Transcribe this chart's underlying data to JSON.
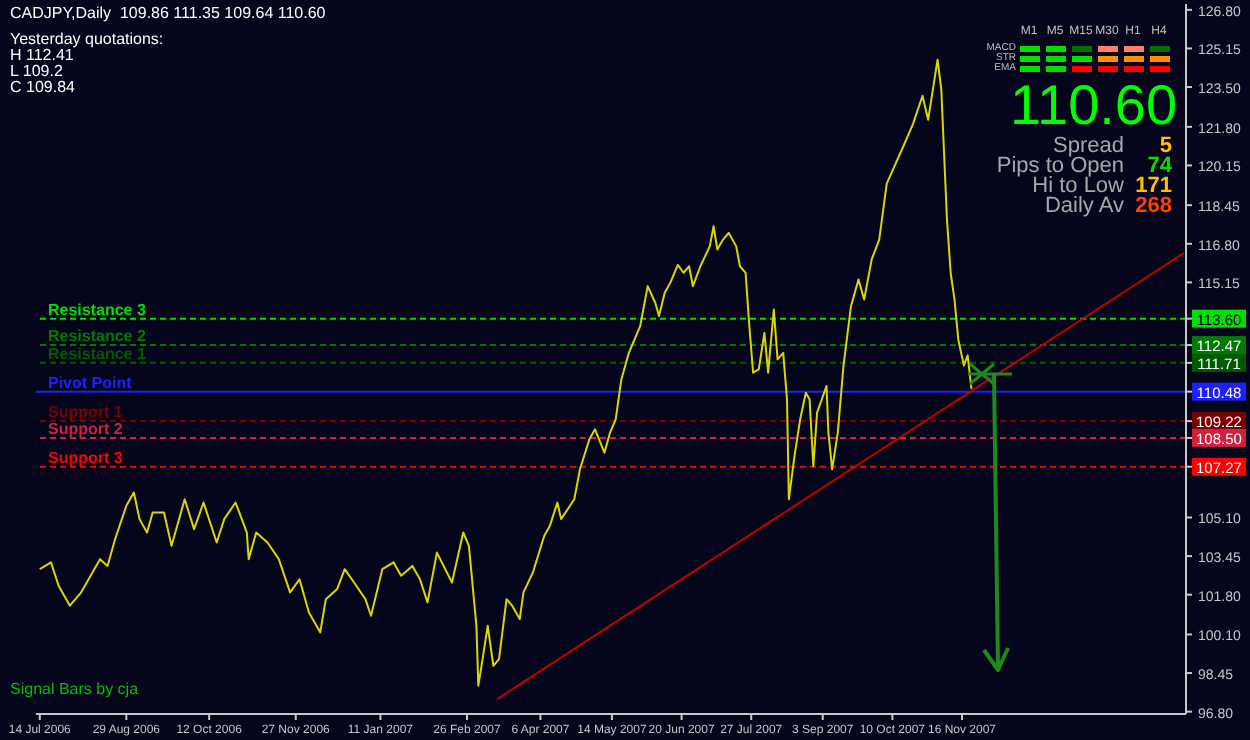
{
  "chart_data": {
    "type": "line",
    "title": "CADJPY,Daily  109.86 111.35 109.64 110.60",
    "xlim": [
      "2006-07-12",
      "2008-03-14"
    ],
    "xticks": [
      {
        "value": "2006-07-14",
        "label": "14 Jul 2006"
      },
      {
        "value": "2006-08-29",
        "label": "29 Aug 2006"
      },
      {
        "value": "2006-10-12",
        "label": "12 Oct 2006"
      },
      {
        "value": "2006-11-27",
        "label": "27 Nov 2006"
      },
      {
        "value": "2007-01-11",
        "label": "11 Jan 2007"
      },
      {
        "value": "2007-02-26",
        "label": "26 Feb 2007"
      },
      {
        "value": "2007-04-06",
        "label": "6 Apr 2007"
      },
      {
        "value": "2007-05-14",
        "label": "14 May 2007"
      },
      {
        "value": "2007-06-20",
        "label": "20 Jun 2007"
      },
      {
        "value": "2007-07-27",
        "label": "27 Jul 2007"
      },
      {
        "value": "2007-09-03",
        "label": "3 Sep 2007"
      },
      {
        "value": "2007-10-10",
        "label": "10 Oct 2007"
      },
      {
        "value": "2007-11-16",
        "label": "16 Nov 2007"
      }
    ],
    "ylim": [
      96.7,
      127.05
    ],
    "yticks": [
      {
        "value": 126.8,
        "label": "126.80"
      },
      125.15,
      {
        "value": 123.5,
        "label": "123.50"
      },
      {
        "value": 121.8,
        "label": "121.80"
      },
      120.15,
      118.45,
      {
        "value": 116.8,
        "label": "116.80"
      },
      115.15,
      {
        "value": 113.6,
        "label": "113.60"
      },
      112.47,
      111.71,
      110.48,
      109.22,
      {
        "value": 108.5,
        "label": "108.50"
      },
      107.27,
      {
        "value": 105.1,
        "label": "105.10"
      },
      103.45,
      {
        "value": 101.8,
        "label": "101.80"
      },
      {
        "value": 100.1,
        "label": "100.10"
      },
      98.45,
      {
        "value": 96.8,
        "label": "96.80"
      }
    ],
    "series": [
      {
        "color": "#d8d800",
        "x": [
          "2006-07-14",
          "2006-07-20",
          "2006-07-24",
          "2006-07-30",
          "2006-08-05",
          "2006-08-11",
          "2006-08-15",
          "2006-08-19",
          "2006-08-23",
          "2006-08-29",
          "2006-09-02",
          "2006-09-05",
          "2006-09-09",
          "2006-09-12",
          "2006-09-18",
          "2006-09-22",
          "2006-09-25",
          "2006-09-29",
          "2006-10-04",
          "2006-10-09",
          "2006-10-16",
          "2006-10-20",
          "2006-10-26",
          "2006-11-01",
          "2006-11-02",
          "2006-11-06",
          "2006-11-12",
          "2006-11-18",
          "2006-11-24",
          "2006-11-29",
          "2006-12-04",
          "2006-12-10",
          "2006-12-13",
          "2006-12-19",
          "2006-12-23",
          "2006-12-28",
          "2007-01-03",
          "2007-01-06",
          "2007-01-12",
          "2007-01-18",
          "2007-01-22",
          "2007-01-28",
          "2007-02-01",
          "2007-02-05",
          "2007-02-10",
          "2007-02-18",
          "2007-02-24",
          "2007-02-27",
          "2007-03-03",
          "2007-03-04",
          "2007-03-06",
          "2007-03-09",
          "2007-03-12",
          "2007-03-15",
          "2007-03-19",
          "2007-03-22",
          "2007-03-26",
          "2007-03-28",
          "2007-04-02",
          "2007-04-08",
          "2007-04-11",
          "2007-04-15",
          "2007-04-17",
          "2007-04-24",
          "2007-04-27",
          "2007-05-02",
          "2007-05-05",
          "2007-05-10",
          "2007-05-13",
          "2007-05-16",
          "2007-05-19",
          "2007-05-23",
          "2007-05-29",
          "2007-06-02",
          "2007-06-06",
          "2007-06-08",
          "2007-06-11",
          "2007-06-14",
          "2007-06-18",
          "2007-06-21",
          "2007-06-24",
          "2007-06-26",
          "2007-06-30",
          "2007-07-05",
          "2007-07-07",
          "2007-07-09",
          "2007-07-12",
          "2007-07-15",
          "2007-07-19",
          "2007-07-21",
          "2007-07-24",
          "2007-07-26",
          "2007-07-28",
          "2007-07-31",
          "2007-08-03",
          "2007-08-05",
          "2007-08-08",
          "2007-08-10",
          "2007-08-13",
          "2007-08-15",
          "2007-08-16",
          "2007-08-19",
          "2007-08-22",
          "2007-08-25",
          "2007-08-27",
          "2007-08-29",
          "2007-08-31",
          "2007-09-05",
          "2007-09-06",
          "2007-09-08",
          "2007-09-11",
          "2007-09-14",
          "2007-09-18",
          "2007-09-22",
          "2007-09-25",
          "2007-09-29",
          "2007-10-03",
          "2007-10-07",
          "2007-10-15",
          "2007-10-21",
          "2007-10-26",
          "2007-10-29",
          "2007-11-03",
          "2007-11-05",
          "2007-11-08",
          "2007-11-10",
          "2007-11-12",
          "2007-11-14",
          "2007-11-17",
          "2007-11-19",
          "2007-11-21"
        ],
        "values": [
          102.89,
          103.18,
          102.18,
          101.33,
          101.9,
          102.75,
          103.32,
          103.03,
          104.17,
          105.6,
          106.17,
          105.03,
          104.46,
          105.31,
          105.31,
          103.89,
          104.74,
          105.88,
          104.6,
          105.74,
          104.03,
          105.03,
          105.74,
          104.46,
          103.32,
          104.46,
          104.03,
          103.32,
          101.9,
          102.46,
          101.04,
          100.19,
          101.61,
          102.04,
          102.89,
          102.32,
          101.61,
          100.9,
          102.89,
          103.18,
          102.61,
          103.03,
          102.46,
          101.47,
          103.6,
          102.32,
          104.46,
          103.89,
          100.47,
          97.91,
          98.91,
          100.47,
          98.76,
          99.05,
          101.61,
          101.33,
          100.76,
          101.9,
          102.75,
          104.31,
          104.74,
          105.74,
          105.03,
          105.88,
          107.16,
          108.44,
          108.87,
          107.87,
          108.73,
          109.29,
          111.0,
          112.14,
          113.28,
          114.99,
          114.28,
          113.71,
          114.7,
          115.13,
          115.9,
          115.56,
          115.84,
          114.99,
          115.84,
          116.7,
          117.55,
          116.55,
          116.98,
          117.27,
          116.7,
          115.84,
          115.56,
          113.28,
          111.29,
          111.43,
          112.99,
          111.29,
          113.99,
          111.86,
          112.14,
          110.15,
          105.88,
          107.73,
          109.29,
          110.43,
          110.15,
          107.3,
          109.58,
          110.72,
          108.73,
          107.16,
          108.73,
          111.57,
          114.13,
          115.27,
          114.42,
          116.13,
          116.98,
          119.37,
          120.82,
          121.93,
          123.13,
          122.1,
          124.67,
          123.38,
          117.83,
          115.53,
          114.42,
          112.71,
          111.6,
          112.03,
          110.6
        ]
      },
      {
        "color": "#c00000",
        "x": [
          "2007-03-14",
          "2008-03-13"
        ],
        "values": [
          97.34,
          116.41
        ]
      }
    ],
    "ref_lines": [
      {
        "axis": "y",
        "value": 113.6,
        "label": "Resistance 3",
        "color": "#00e000",
        "line_style": "dashed"
      },
      {
        "axis": "y",
        "value": 112.47,
        "label": "Resistance 2",
        "color": "#007a00",
        "line_style": "dashed"
      },
      {
        "axis": "y",
        "value": 111.71,
        "label": "Resistance 1",
        "color": "#005a00",
        "line_style": "dashed"
      },
      {
        "axis": "y",
        "value": 110.48,
        "label": "Pivot Point",
        "color": "#2020ff",
        "line_style": "solid"
      },
      {
        "axis": "y",
        "value": 109.22,
        "label": "Support 1",
        "color": "#7a0000",
        "line_style": "dashed"
      },
      {
        "axis": "y",
        "value": 108.5,
        "label": "Support 2",
        "color": "#d02040",
        "line_style": "dashed"
      },
      {
        "axis": "y",
        "value": 107.27,
        "label": "Support 3",
        "color": "#ff0000",
        "line_style": "dashed"
      }
    ],
    "annotations": [
      "Yesterday quotations:",
      "H 112.41",
      "L 109.2",
      "C 109.84",
      "M1",
      "M5",
      "M15",
      "M30",
      "H1",
      "H4",
      "MACD",
      "STR",
      "EMA",
      "110.60",
      "Spread",
      "5",
      "Pips to Open",
      "74",
      "Hi to Low",
      "171",
      "Daily Av",
      "268",
      "Signal Bars by cja"
    ]
  }
}
